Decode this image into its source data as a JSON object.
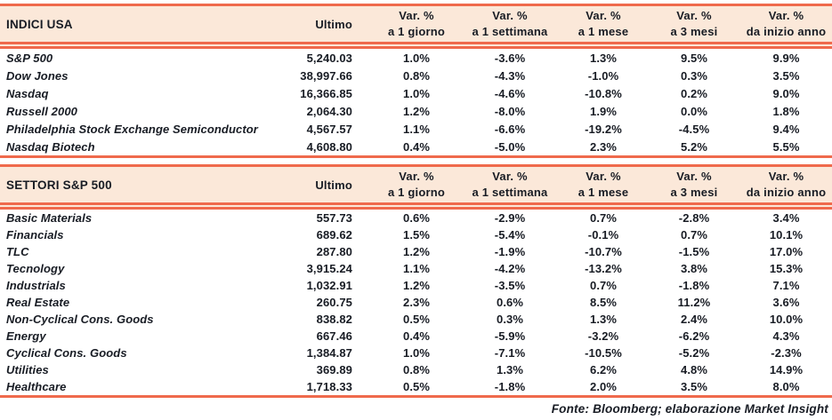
{
  "colors": {
    "accent": "#ef6a4c",
    "header_bg": "#fbe8d9",
    "text": "#181c24"
  },
  "page": {
    "footer": "Fonte: Bloomberg; elaborazione Market Insight"
  },
  "tables": [
    {
      "title": "INDICI USA",
      "ultimo_header": "Ultimo",
      "var_headers": [
        {
          "line1": "Var. %",
          "line2": "a 1 giorno"
        },
        {
          "line1": "Var. %",
          "line2": "a 1 settimana"
        },
        {
          "line1": "Var. %",
          "line2": "a 1 mese"
        },
        {
          "line1": "Var. %",
          "line2": "a 3 mesi"
        },
        {
          "line1": "Var. %",
          "line2": "da inizio anno"
        }
      ],
      "rows": [
        {
          "name": "S&P 500",
          "ultimo": "5,240.03",
          "vars": [
            "1.0%",
            "-3.6%",
            "1.3%",
            "9.5%",
            "9.9%"
          ]
        },
        {
          "name": "Dow Jones",
          "ultimo": "38,997.66",
          "vars": [
            "0.8%",
            "-4.3%",
            "-1.0%",
            "0.3%",
            "3.5%"
          ]
        },
        {
          "name": "Nasdaq",
          "ultimo": "16,366.85",
          "vars": [
            "1.0%",
            "-4.6%",
            "-10.8%",
            "0.2%",
            "9.0%"
          ]
        },
        {
          "name": "Russell 2000",
          "ultimo": "2,064.30",
          "vars": [
            "1.2%",
            "-8.0%",
            "1.9%",
            "0.0%",
            "1.8%"
          ]
        },
        {
          "name": "Philadelphia Stock Exchange Semiconductor",
          "ultimo": "4,567.57",
          "vars": [
            "1.1%",
            "-6.6%",
            "-19.2%",
            "-4.5%",
            "9.4%"
          ]
        },
        {
          "name": "Nasdaq Biotech",
          "ultimo": "4,608.80",
          "vars": [
            "0.4%",
            "-5.0%",
            "2.3%",
            "5.2%",
            "5.5%"
          ]
        }
      ]
    },
    {
      "title": "SETTORI S&P 500",
      "ultimo_header": "Ultimo",
      "var_headers": [
        {
          "line1": "Var. %",
          "line2": "a 1 giorno"
        },
        {
          "line1": "Var. %",
          "line2": "a 1 settimana"
        },
        {
          "line1": "Var. %",
          "line2": "a 1 mese"
        },
        {
          "line1": "Var. %",
          "line2": "a 3 mesi"
        },
        {
          "line1": "Var. %",
          "line2": "da inizio anno"
        }
      ],
      "rows": [
        {
          "name": "Basic Materials",
          "ultimo": "557.73",
          "vars": [
            "0.6%",
            "-2.9%",
            "0.7%",
            "-2.8%",
            "3.4%"
          ]
        },
        {
          "name": "Financials",
          "ultimo": "689.62",
          "vars": [
            "1.5%",
            "-5.4%",
            "-0.1%",
            "0.7%",
            "10.1%"
          ]
        },
        {
          "name": "TLC",
          "ultimo": "287.80",
          "vars": [
            "1.2%",
            "-1.9%",
            "-10.7%",
            "-1.5%",
            "17.0%"
          ]
        },
        {
          "name": "Tecnology",
          "ultimo": "3,915.24",
          "vars": [
            "1.1%",
            "-4.2%",
            "-13.2%",
            "3.8%",
            "15.3%"
          ]
        },
        {
          "name": "Industrials",
          "ultimo": "1,032.91",
          "vars": [
            "1.2%",
            "-3.5%",
            "0.7%",
            "-1.8%",
            "7.1%"
          ]
        },
        {
          "name": "Real Estate",
          "ultimo": "260.75",
          "vars": [
            "2.3%",
            "0.6%",
            "8.5%",
            "11.2%",
            "3.6%"
          ]
        },
        {
          "name": "Non-Cyclical Cons. Goods",
          "ultimo": "838.82",
          "vars": [
            "0.5%",
            "0.3%",
            "1.3%",
            "2.4%",
            "10.0%"
          ]
        },
        {
          "name": "Energy",
          "ultimo": "667.46",
          "vars": [
            "0.4%",
            "-5.9%",
            "-3.2%",
            "-6.2%",
            "4.3%"
          ]
        },
        {
          "name": "Cyclical Cons. Goods",
          "ultimo": "1,384.87",
          "vars": [
            "1.0%",
            "-7.1%",
            "-10.5%",
            "-5.2%",
            "-2.3%"
          ]
        },
        {
          "name": "Utilities",
          "ultimo": "369.89",
          "vars": [
            "0.8%",
            "1.3%",
            "6.2%",
            "4.8%",
            "14.9%"
          ]
        },
        {
          "name": "Healthcare",
          "ultimo": "1,718.33",
          "vars": [
            "0.5%",
            "-1.8%",
            "2.0%",
            "3.5%",
            "8.0%"
          ]
        }
      ]
    }
  ]
}
